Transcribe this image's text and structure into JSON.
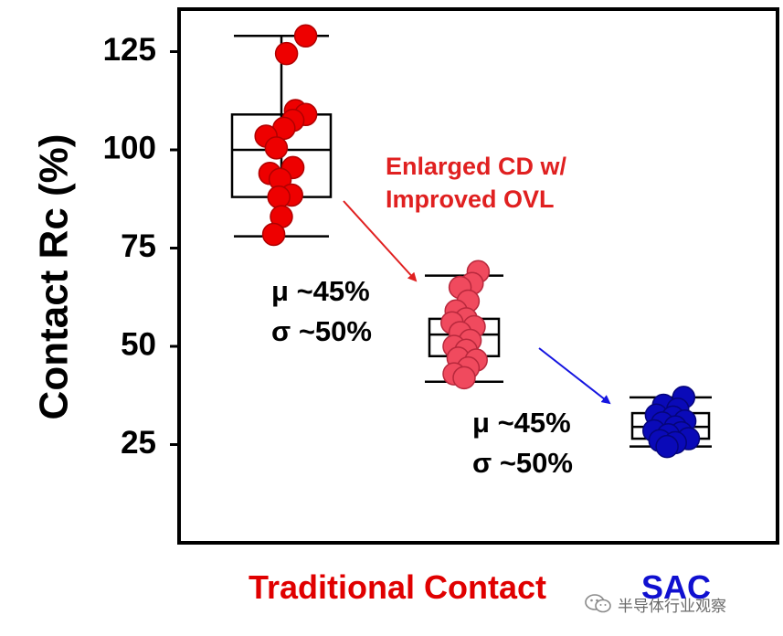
{
  "chart_data": {
    "type": "box",
    "ylabel": "Contact Rc (%)",
    "ylim": [
      0,
      135
    ],
    "yticks": [
      25,
      50,
      75,
      100,
      125
    ],
    "categories": [
      "Traditional Contact",
      "",
      "SAC"
    ],
    "category_colors": [
      "#e00000",
      "#e00000",
      "#1010d0"
    ],
    "series": [
      {
        "name": "Traditional Contact",
        "fill": "#ee0000",
        "stroke": "#b00000",
        "box": {
          "whisker_low": 78,
          "q1": 88,
          "median": 100,
          "q3": 109,
          "whisker_high": 129
        },
        "points": [
          {
            "dx": 0.95,
            "y": 129
          },
          {
            "dx": 0.2,
            "y": 124.5
          },
          {
            "dx": 0.55,
            "y": 110
          },
          {
            "dx": 0.95,
            "y": 109
          },
          {
            "dx": 0.45,
            "y": 107.5
          },
          {
            "dx": 0.1,
            "y": 105.5
          },
          {
            "dx": -0.6,
            "y": 103.5
          },
          {
            "dx": -0.2,
            "y": 100.5
          },
          {
            "dx": 0.45,
            "y": 95.5
          },
          {
            "dx": -0.45,
            "y": 94
          },
          {
            "dx": -0.05,
            "y": 92.5
          },
          {
            "dx": 0.4,
            "y": 88.5
          },
          {
            "dx": -0.1,
            "y": 88
          },
          {
            "dx": 0.0,
            "y": 83
          },
          {
            "dx": -0.3,
            "y": 78.5
          }
        ]
      },
      {
        "name": "Enlarged CD w/ Improved OVL",
        "fill": "#f04a5e",
        "stroke": "#b8283c",
        "box": {
          "whisker_low": 41,
          "q1": 47.5,
          "median": 53,
          "q3": 57,
          "whisker_high": 68
        },
        "points": [
          {
            "dx": 0.7,
            "y": 69
          },
          {
            "dx": 0.4,
            "y": 66
          },
          {
            "dx": -0.2,
            "y": 65
          },
          {
            "dx": 0.2,
            "y": 61.5
          },
          {
            "dx": -0.4,
            "y": 59
          },
          {
            "dx": 0.1,
            "y": 57
          },
          {
            "dx": -0.6,
            "y": 56
          },
          {
            "dx": 0.5,
            "y": 55
          },
          {
            "dx": -0.2,
            "y": 53.5
          },
          {
            "dx": 0.3,
            "y": 51.5
          },
          {
            "dx": -0.5,
            "y": 50
          },
          {
            "dx": 0.1,
            "y": 49
          },
          {
            "dx": -0.3,
            "y": 47
          },
          {
            "dx": 0.6,
            "y": 46.5
          },
          {
            "dx": 0.2,
            "y": 44.5
          },
          {
            "dx": -0.5,
            "y": 43
          },
          {
            "dx": 0.0,
            "y": 42
          }
        ]
      },
      {
        "name": "SAC",
        "fill": "#0a0ab8",
        "stroke": "#05057a",
        "box": {
          "whisker_low": 24.5,
          "q1": 26.5,
          "median": 29.5,
          "q3": 33,
          "whisker_high": 37
        },
        "points": [
          {
            "dx": 0.55,
            "y": 37
          },
          {
            "dx": -0.3,
            "y": 35
          },
          {
            "dx": 0.3,
            "y": 34
          },
          {
            "dx": -0.6,
            "y": 32.5
          },
          {
            "dx": 0.1,
            "y": 32
          },
          {
            "dx": 0.6,
            "y": 31
          },
          {
            "dx": -0.35,
            "y": 30.5
          },
          {
            "dx": 0.2,
            "y": 29.5
          },
          {
            "dx": -0.7,
            "y": 28.5
          },
          {
            "dx": 0.45,
            "y": 28
          },
          {
            "dx": -0.1,
            "y": 27.5
          },
          {
            "dx": 0.75,
            "y": 26.5
          },
          {
            "dx": -0.45,
            "y": 26
          },
          {
            "dx": 0.2,
            "y": 25.5
          },
          {
            "dx": -0.15,
            "y": 24.5
          }
        ]
      }
    ],
    "annotations": {
      "arrow_label": "Enlarged CD w/\nImproved OVL",
      "stats1": "μ ~45%\nσ ~50%",
      "stats2": "μ ~45%\nσ ~50%"
    }
  },
  "colors": {
    "red_text": "#e02020",
    "red_arrow": "#e02020",
    "blue_arrow": "#1515e0",
    "black": "#000000"
  },
  "watermark": {
    "text": "半导体行业观察",
    "icon": "wechat-icon"
  }
}
